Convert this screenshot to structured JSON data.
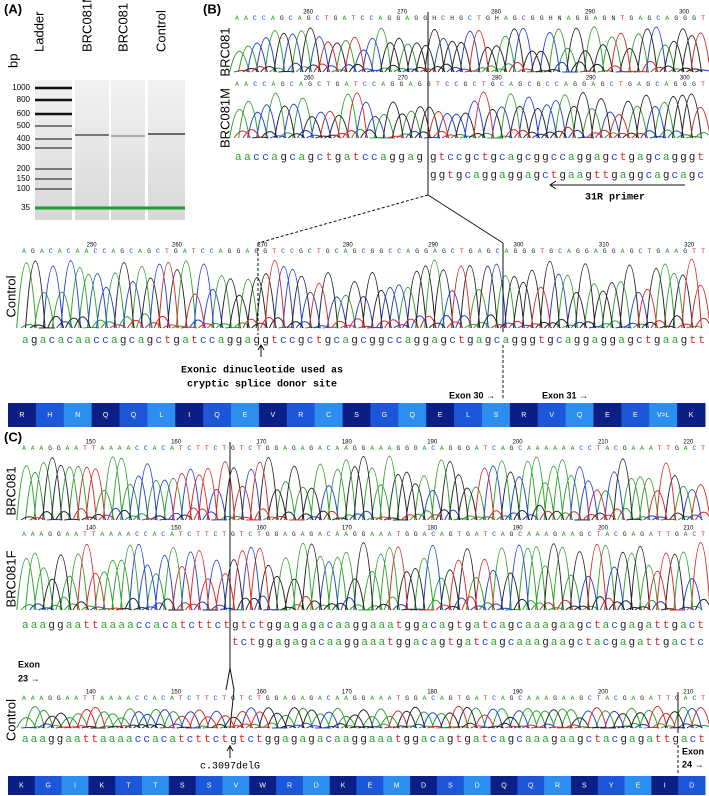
{
  "panel_a": {
    "label": "(A)",
    "lanes": [
      "bp",
      "Ladder",
      "BRC081M",
      "BRC081",
      "Control"
    ],
    "sizes": [
      "1000",
      "800",
      "600",
      "500",
      "400",
      "300",
      "200",
      "150",
      "100",
      "35"
    ]
  },
  "panel_b": {
    "label": "(B)",
    "traces": [
      {
        "name": "BRC081",
        "calls": "AACCAGCAGCTGATCCAGGAGGHCHGCTGHAGCGGHNAGGAGNTGAGCAGGGT",
        "ticks": [
          "260",
          "270",
          "280",
          "290",
          "300"
        ]
      },
      {
        "name": "BRC081M",
        "calls": "AACCAGCAGCTGATCCAGGAGGTCCGCTGCAGCGCCAGGAGCTGAGCAGGGT",
        "ticks": [
          "260",
          "270",
          "280",
          "290",
          "300"
        ]
      }
    ],
    "seq_common": "aaccagcagctgatccaggag",
    "seq_top": "gtccgctgcagcggccaggagctgagcagggt",
    "seq_bottom": "ggtgcaggaggagctgaagttgaggcagcagc",
    "primer": "31R primer",
    "control": {
      "name": "Control",
      "calls": "AGACACAACCAGCAGCTGATCCAGGAGGTCCGCTGCAGCGGCCAGGAGCTGAGCAGGGTGCAGGAGGAGCTGAAGTT",
      "ticks": [
        "250",
        "260",
        "270",
        "280",
        "290",
        "300",
        "310",
        "320"
      ],
      "seq": "agacacaaccagcagctgatccaggaggtccgctgcagcggccaggagctgagcagggtgcaggaggagctgaagtt"
    },
    "note": [
      "Exonic dinucleotide used as",
      "cryptic splice donor site"
    ],
    "exon_a": "Exon 30 →",
    "exon_b": "Exon 31 →",
    "aa": [
      "R",
      "H",
      "N",
      "Q",
      "Q",
      "L",
      "I",
      "Q",
      "E",
      "V",
      "R",
      "C",
      "S",
      "G",
      "Q",
      "E",
      "L",
      "S",
      "R",
      "V",
      "Q",
      "E",
      "E",
      "V>L",
      "K"
    ]
  },
  "panel_c": {
    "label": "(C)",
    "traces": [
      {
        "name": "BRC081",
        "calls": "AAAGGAATTAAAACCACATCTTCTGTCTGGAGAGACAAGGAAAGGGACAGGGATCAGCAAAAAACCTACGAAATTGACT",
        "ticks": [
          "150",
          "160",
          "170",
          "180",
          "190",
          "200",
          "210",
          "220"
        ]
      },
      {
        "name": "BRC081F",
        "calls": "AAAGGAATTAAAACCACATCTTCTGTCTGGAGAGACAAGGAAATGGACAGTGATCAGCAAAGAAGCTACGAGATTGACT",
        "ticks": [
          "140",
          "150",
          "160",
          "170",
          "180",
          "190",
          "200",
          "210"
        ]
      }
    ],
    "seq_common": "aaaggaattaaaaccacatcttct",
    "seq_top": "gtctggagagacaaggaaatggacagtgatcagcaaagaagctacgagattgact",
    "seq_bottom": "tctggagagacaaggaaatggacagtgatcagcaaagaagctacgagattgactc",
    "exon_a": [
      "Exon",
      "23 →"
    ],
    "control": {
      "name": "Control",
      "calls": "AAAGGAATTAAAACCACATCTTCTGTCTGGAGAGACAAGGAAATGGACAGTGATCAGCAAAGAAGCTACGAGATTGACT",
      "ticks": [
        "140",
        "150",
        "160",
        "170",
        "180",
        "190",
        "200",
        "210"
      ],
      "seq": "aaaggaattaaaaccacatcttctgtctggagagacaaggaaatggacagtgatcagcaaagaagctacgagattgact"
    },
    "mutation": "c.3097delG",
    "exon_b": [
      "Exon",
      "24 →"
    ],
    "aa": [
      "K",
      "G",
      "I",
      "K",
      "T",
      "T",
      "S",
      "S",
      "V",
      "W",
      "R",
      "D",
      "K",
      "E",
      "M",
      "D",
      "S",
      "D",
      "Q",
      "Q",
      "R",
      "S",
      "Y",
      "E",
      "I",
      "D"
    ]
  }
}
